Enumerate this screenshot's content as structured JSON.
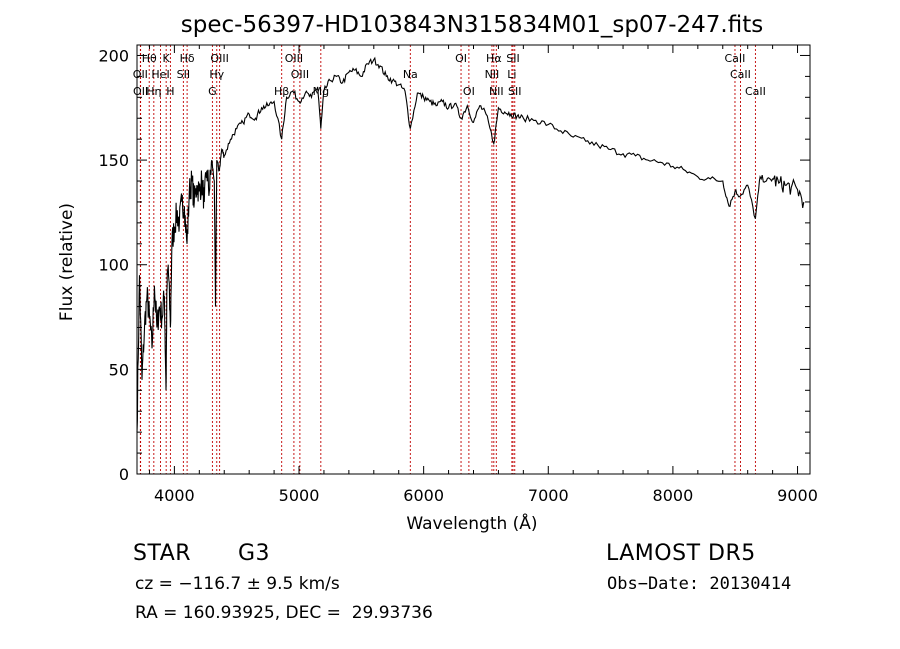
{
  "chart_data": {
    "type": "line",
    "title": "spec-56397-HD103843N315834M01_sp07-247.fits",
    "xlabel": "Wavelength (Å)",
    "ylabel": "Flux (relative)",
    "xlim": [
      3700,
      9100
    ],
    "ylim": [
      0,
      205
    ],
    "xticks": [
      4000,
      5000,
      6000,
      7000,
      8000,
      9000
    ],
    "yticks": [
      0,
      50,
      100,
      150,
      200
    ],
    "grid": false,
    "legend": "none",
    "series": [
      {
        "x": [
          3700,
          3720,
          3740,
          3760,
          3780,
          3800,
          3820,
          3840,
          3860,
          3880,
          3900,
          3920,
          3933,
          3940,
          3950,
          3968,
          3980,
          4000,
          4020,
          4040,
          4060,
          4080,
          4101,
          4120,
          4140,
          4160,
          4180,
          4200,
          4220,
          4240,
          4260,
          4280,
          4300,
          4320,
          4330,
          4340,
          4360,
          4380,
          4400,
          4450,
          4500,
          4550,
          4600,
          4650,
          4700,
          4750,
          4800,
          4861,
          4900,
          4950,
          5000,
          5050,
          5100,
          5150,
          5175,
          5200,
          5250,
          5300,
          5350,
          5400,
          5450,
          5500,
          5550,
          5600,
          5650,
          5700,
          5750,
          5800,
          5850,
          5893,
          5950,
          6000,
          6050,
          6100,
          6150,
          6200,
          6250,
          6300,
          6350,
          6400,
          6450,
          6500,
          6563,
          6600,
          6650,
          6700,
          6750,
          6800,
          6900,
          7000,
          7100,
          7200,
          7300,
          7400,
          7500,
          7600,
          7700,
          7800,
          7900,
          8000,
          8100,
          8200,
          8300,
          8400,
          8450,
          8498,
          8542,
          8600,
          8662,
          8700,
          8750,
          8800,
          8850,
          8900,
          8950,
          9000,
          9050
        ],
        "values": [
          20,
          95,
          45,
          70,
          85,
          75,
          60,
          90,
          70,
          80,
          75,
          85,
          40,
          88,
          100,
          70,
          110,
          118,
          125,
          120,
          130,
          128,
          110,
          135,
          140,
          130,
          138,
          135,
          140,
          130,
          145,
          135,
          150,
          140,
          80,
          150,
          145,
          155,
          152,
          160,
          165,
          168,
          172,
          170,
          175,
          176,
          178,
          160,
          180,
          183,
          178,
          182,
          180,
          185,
          165,
          183,
          188,
          190,
          187,
          192,
          193,
          190,
          196,
          198,
          195,
          190,
          188,
          186,
          183,
          165,
          182,
          180,
          178,
          176,
          178,
          175,
          177,
          170,
          176,
          168,
          176,
          172,
          158,
          175,
          173,
          172,
          171,
          170,
          169,
          167,
          164,
          161,
          159,
          157,
          155,
          153,
          152,
          150,
          149,
          147,
          145,
          142,
          141,
          140,
          128,
          135,
          133,
          138,
          122,
          142,
          140,
          141,
          139,
          138,
          137,
          136,
          130
        ]
      }
    ],
    "annotations": [
      {
        "label": "Hθ",
        "x": 3798,
        "row": 1
      },
      {
        "label": "K",
        "x": 3934,
        "row": 1
      },
      {
        "label": "Hδ",
        "x": 4102,
        "row": 1
      },
      {
        "label": "OIII",
        "x": 4363,
        "row": 1
      },
      {
        "label": "OIII",
        "x": 4959,
        "row": 1
      },
      {
        "label": "OI",
        "x": 6300,
        "row": 1
      },
      {
        "label": "Hα",
        "x": 6563,
        "row": 1
      },
      {
        "label": "SII",
        "x": 6717,
        "row": 1
      },
      {
        "label": "CaII",
        "x": 8498,
        "row": 1
      },
      {
        "label": "OII",
        "x": 3727,
        "row": 2
      },
      {
        "label": "HeI",
        "x": 3889,
        "row": 2
      },
      {
        "label": "SII",
        "x": 4072,
        "row": 2
      },
      {
        "label": "Hγ",
        "x": 4340,
        "row": 2
      },
      {
        "label": "OIII",
        "x": 5007,
        "row": 2
      },
      {
        "label": "Na",
        "x": 5893,
        "row": 2
      },
      {
        "label": "NII",
        "x": 6548,
        "row": 2
      },
      {
        "label": "Li",
        "x": 6708,
        "row": 2
      },
      {
        "label": "CaII",
        "x": 8542,
        "row": 2
      },
      {
        "label": "OII",
        "x": 3729,
        "row": 3
      },
      {
        "label": "Hη",
        "x": 3835,
        "row": 3
      },
      {
        "label": "H",
        "x": 3968,
        "row": 3
      },
      {
        "label": "G",
        "x": 4305,
        "row": 3
      },
      {
        "label": "Hβ",
        "x": 4861,
        "row": 3
      },
      {
        "label": "Mg",
        "x": 5175,
        "row": 3
      },
      {
        "label": "OI",
        "x": 6363,
        "row": 3
      },
      {
        "label": "NII",
        "x": 6583,
        "row": 3
      },
      {
        "label": "SII",
        "x": 6731,
        "row": 3
      },
      {
        "label": "CaII",
        "x": 8662,
        "row": 3
      }
    ],
    "line_color": "#000000",
    "marker_line_color": "#c00000"
  },
  "info": {
    "class": "STAR",
    "subclass": "G3",
    "survey": "LAMOST DR5",
    "cz_text": "cz = −116.7 ± 9.5 km/s",
    "obs_date": "Obs−Date: 20130414",
    "coords_text": "RA = 160.93925, DEC =  29.93736"
  }
}
